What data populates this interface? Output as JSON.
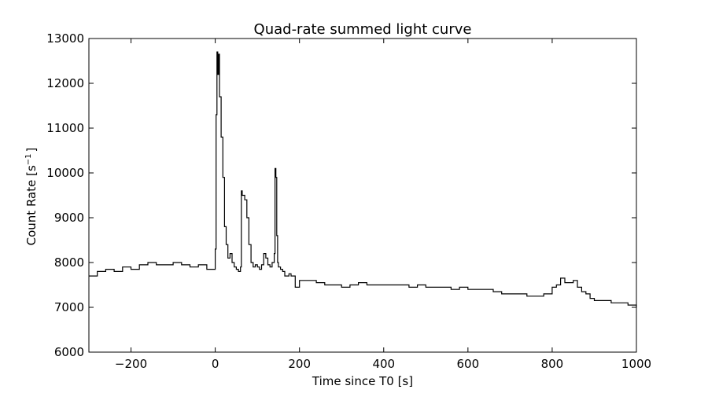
{
  "chart_data": {
    "type": "line",
    "title": "Quad-rate summed light curve",
    "xlabel": "Time since T0 [s]",
    "ylabel_main": "Count Rate [s",
    "ylabel_sup": "−1",
    "ylabel_end": "]",
    "xlim": [
      -300,
      1000
    ],
    "ylim": [
      6000,
      13000
    ],
    "xticks": [
      -200,
      0,
      200,
      400,
      600,
      800,
      1000
    ],
    "xtick_labels": [
      "−200",
      "0",
      "200",
      "400",
      "600",
      "800",
      "1000"
    ],
    "yticks": [
      6000,
      7000,
      8000,
      9000,
      10000,
      11000,
      12000,
      13000
    ],
    "ytick_labels": [
      "6000",
      "7000",
      "8000",
      "9000",
      "10000",
      "11000",
      "12000",
      "13000"
    ],
    "grid": false,
    "drawstyle": "steps",
    "series": [
      {
        "x": [
          -300,
          -280,
          -260,
          -240,
          -220,
          -200,
          -180,
          -160,
          -140,
          -120,
          -100,
          -80,
          -60,
          -40,
          -20,
          -5,
          0,
          2,
          4,
          6,
          8,
          10,
          14,
          18,
          22,
          26,
          30,
          35,
          40,
          45,
          50,
          55,
          60,
          62,
          64,
          66,
          70,
          75,
          80,
          85,
          90,
          95,
          100,
          105,
          110,
          115,
          120,
          125,
          130,
          135,
          140,
          142,
          144,
          146,
          148,
          150,
          155,
          160,
          165,
          170,
          175,
          180,
          190,
          200,
          220,
          240,
          260,
          280,
          300,
          320,
          340,
          360,
          380,
          400,
          420,
          440,
          460,
          480,
          500,
          520,
          540,
          560,
          580,
          600,
          620,
          640,
          660,
          680,
          700,
          720,
          740,
          760,
          780,
          800,
          810,
          820,
          830,
          840,
          850,
          860,
          870,
          880,
          890,
          900,
          920,
          940,
          960,
          980,
          1000
        ],
        "y": [
          7700,
          7800,
          7850,
          7800,
          7900,
          7850,
          7950,
          8000,
          7950,
          7950,
          8000,
          7950,
          7900,
          7950,
          7850,
          7850,
          8300,
          11300,
          12700,
          12200,
          12650,
          11700,
          10800,
          9900,
          8800,
          8400,
          8100,
          8200,
          8000,
          7900,
          7850,
          7800,
          7900,
          9600,
          9500,
          9500,
          9400,
          9000,
          8400,
          8000,
          7900,
          7950,
          7900,
          7850,
          7950,
          8200,
          8100,
          7950,
          7900,
          8000,
          8200,
          10100,
          9900,
          8600,
          8000,
          7900,
          7850,
          7800,
          7700,
          7700,
          7750,
          7700,
          7450,
          7600,
          7600,
          7550,
          7500,
          7500,
          7450,
          7500,
          7550,
          7500,
          7500,
          7500,
          7500,
          7500,
          7450,
          7500,
          7450,
          7450,
          7450,
          7400,
          7450,
          7400,
          7400,
          7400,
          7350,
          7300,
          7300,
          7300,
          7250,
          7250,
          7300,
          7450,
          7500,
          7650,
          7550,
          7550,
          7600,
          7450,
          7350,
          7300,
          7200,
          7150,
          7150,
          7100,
          7100,
          7050,
          7000
        ]
      }
    ]
  }
}
